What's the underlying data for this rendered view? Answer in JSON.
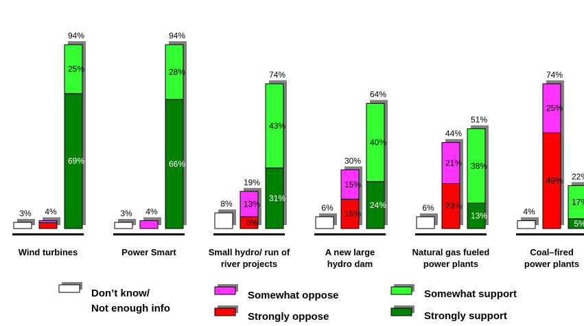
{
  "colors": {
    "dont_know": "#ffffff",
    "somewhat_oppose": "#ff33ff",
    "strongly_oppose": "#ff0000",
    "somewhat_support": "#33ff33",
    "strongly_support": "#008000",
    "shadow": "#808080",
    "outline": "#000000"
  },
  "chart_data": {
    "type": "bar",
    "stacked": true,
    "value_unit": "%",
    "categories": [
      [
        "Wind turbines"
      ],
      [
        "Power Smart"
      ],
      [
        "Small hydro/ run of",
        "river projects"
      ],
      [
        "A new large",
        "hydro dam"
      ],
      [
        "Natural gas fueled",
        "power plants"
      ],
      [
        "Coal–fired",
        "power plants"
      ]
    ],
    "bar_groups": [
      "Don't know",
      "Oppose",
      "Support"
    ],
    "series": [
      {
        "name": "Don’t know/ Not enough info",
        "key": "dont_know",
        "group": "Don't know",
        "values": [
          3,
          3,
          8,
          6,
          6,
          4
        ]
      },
      {
        "name": "Strongly oppose",
        "key": "strongly_oppose",
        "group": "Oppose",
        "values": [
          3,
          0,
          6,
          15,
          23,
          49
        ]
      },
      {
        "name": "Somewhat oppose",
        "key": "somewhat_oppose",
        "group": "Oppose",
        "values": [
          1,
          4,
          13,
          15,
          21,
          25
        ]
      },
      {
        "name": "Strongly support",
        "key": "strongly_support",
        "group": "Support",
        "values": [
          69,
          66,
          31,
          24,
          13,
          5
        ]
      },
      {
        "name": "Somewhat support",
        "key": "somewhat_support",
        "group": "Support",
        "values": [
          25,
          28,
          43,
          40,
          38,
          17
        ]
      }
    ],
    "totals": {
      "Don't know": [
        "3%",
        "3%",
        "8%",
        "6%",
        "6%",
        "4%"
      ],
      "Oppose": [
        "4%",
        "4%",
        "19%",
        "30%",
        "44%",
        "74%"
      ],
      "Support": [
        "94%",
        "94%",
        "74%",
        "64%",
        "51%",
        "22%"
      ]
    },
    "segment_labels": {
      "strongly_oppose": [
        "",
        "",
        "6%",
        "15%",
        "23%",
        "49%"
      ],
      "somewhat_oppose": [
        "",
        "",
        "13%",
        "15%",
        "21%",
        "25%"
      ],
      "strongly_support": [
        "69%",
        "66%",
        "31%",
        "24%",
        "13%",
        "5%"
      ],
      "somewhat_support": [
        "25%",
        "28%",
        "43%",
        "40%",
        "38%",
        "17%"
      ]
    },
    "legend": [
      {
        "key": "dont_know",
        "lines": [
          "Don’t know/",
          "Not enough info"
        ]
      },
      {
        "key": "somewhat_oppose",
        "lines": [
          "Somewhat oppose"
        ]
      },
      {
        "key": "strongly_oppose",
        "lines": [
          "Strongly oppose"
        ]
      },
      {
        "key": "somewhat_support",
        "lines": [
          "Somewhat support"
        ]
      },
      {
        "key": "strongly_support",
        "lines": [
          "Strongly support"
        ]
      }
    ],
    "legend_position": "bottom",
    "grid": false
  }
}
